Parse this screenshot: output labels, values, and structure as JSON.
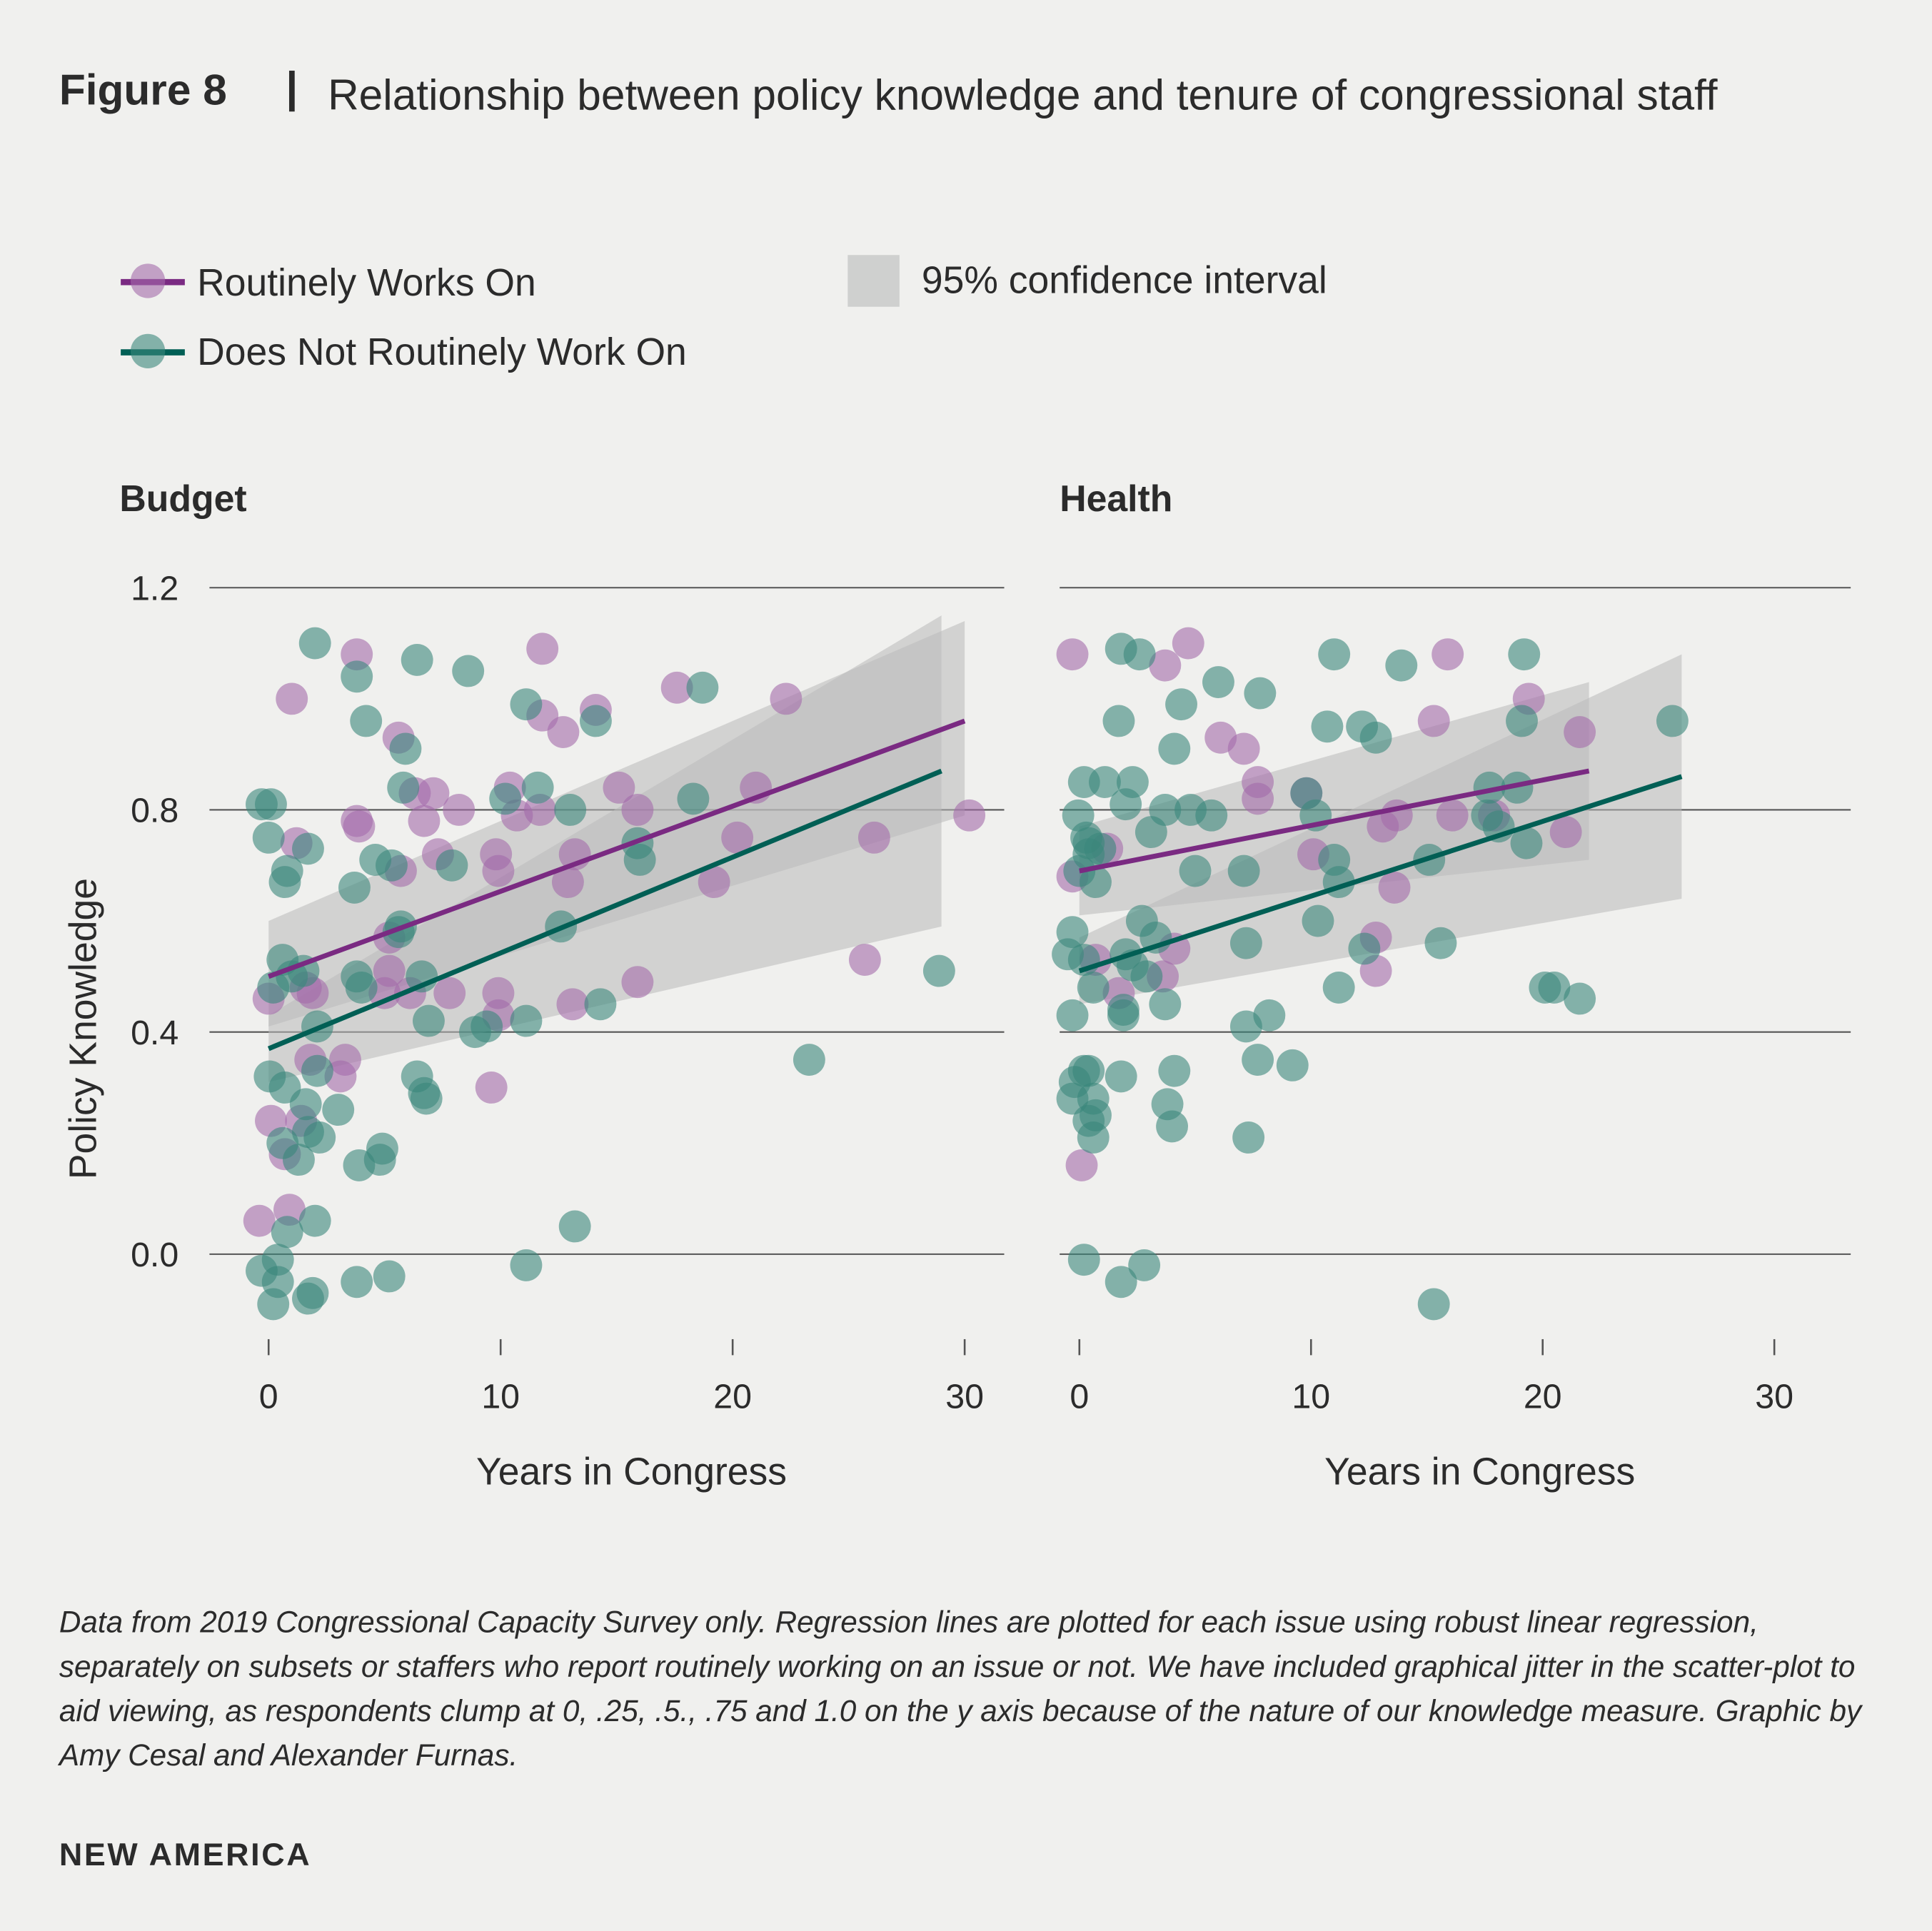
{
  "header": {
    "figure_label": "Figure 8",
    "separator": "|",
    "title": "Relationship between policy knowledge and tenure of congressional staff"
  },
  "legend": {
    "routine": "Routinely Works On",
    "not_routine": "Does Not Routinely Work On",
    "ci": "95% confidence interval"
  },
  "colors": {
    "background": "#f0f0ee",
    "routine_line": "#7a2a82",
    "routine_point": "#a46aaa",
    "not_line": "#015f55",
    "not_point": "#3a877c",
    "ci": "#b9baba"
  },
  "caption": "Data from 2019 Congressional Capacity Survey only. Regression lines are plotted for each issue using robust linear regression, separately on subsets or staffers who report routinely working on an issue or not. We have included graphical jitter in the scatter-plot to aid viewing, as respondents clump at 0, .25, .5., .75 and 1.0 on the y axis because of the nature of our knowledge measure. Graphic by Amy Cesal and Alexander Furnas.",
  "brand": "NEW AMERICA",
  "chart_data": [
    {
      "type": "scatter",
      "title": "Budget",
      "xlabel": "Years in Congress",
      "ylabel": "Policy Knowledge",
      "xlim": [
        -2.5,
        32
      ],
      "ylim": [
        -0.15,
        1.2
      ],
      "xticks": [
        "0",
        "10",
        "20",
        "30"
      ],
      "yticks": [
        "1.2",
        "0.8",
        "0.4",
        "0.0"
      ],
      "grid": "horizontal",
      "series": [
        {
          "name": "Routinely Works On",
          "points": [
            [
              -0.4,
              0.06
            ],
            [
              1.0,
              1.0
            ],
            [
              3.8,
              1.08
            ],
            [
              11.8,
              1.09
            ],
            [
              17.6,
              1.02
            ],
            [
              22.3,
              1.0
            ],
            [
              14.1,
              0.98
            ],
            [
              11.8,
              0.97
            ],
            [
              12.7,
              0.94
            ],
            [
              5.6,
              0.93
            ],
            [
              15.1,
              0.84
            ],
            [
              10.4,
              0.84
            ],
            [
              21.0,
              0.84
            ],
            [
              6.3,
              0.83
            ],
            [
              7.1,
              0.83
            ],
            [
              3.8,
              0.78
            ],
            [
              3.9,
              0.77
            ],
            [
              6.7,
              0.78
            ],
            [
              8.2,
              0.8
            ],
            [
              11.7,
              0.8
            ],
            [
              10.7,
              0.79
            ],
            [
              15.9,
              0.8
            ],
            [
              20.2,
              0.75
            ],
            [
              26.1,
              0.75
            ],
            [
              30.2,
              0.79
            ],
            [
              1.2,
              0.74
            ],
            [
              7.3,
              0.72
            ],
            [
              13.2,
              0.72
            ],
            [
              9.8,
              0.72
            ],
            [
              9.9,
              0.69
            ],
            [
              5.7,
              0.69
            ],
            [
              12.9,
              0.67
            ],
            [
              19.2,
              0.67
            ],
            [
              5.2,
              0.57
            ],
            [
              5.2,
              0.51
            ],
            [
              7.8,
              0.47
            ],
            [
              5.0,
              0.47
            ],
            [
              6.1,
              0.47
            ],
            [
              9.9,
              0.47
            ],
            [
              1.9,
              0.47
            ],
            [
              0,
              0.46
            ],
            [
              9.9,
              0.43
            ],
            [
              13.1,
              0.45
            ],
            [
              15.9,
              0.49
            ],
            [
              25.7,
              0.53
            ],
            [
              9.6,
              0.3
            ],
            [
              3.3,
              0.35
            ],
            [
              3.1,
              0.32
            ],
            [
              1.8,
              0.35
            ],
            [
              0.1,
              0.24
            ],
            [
              0.7,
              0.18
            ],
            [
              0.9,
              0.08
            ],
            [
              1.4,
              0.24
            ],
            [
              1.6,
              0.48
            ]
          ],
          "fit": {
            "x": [
              0,
              30
            ],
            "y": [
              0.5,
              0.96
            ]
          },
          "ci": {
            "x": [
              0,
              30
            ],
            "lower": [
              0.41,
              0.79
            ],
            "upper": [
              0.6,
              1.14
            ]
          }
        },
        {
          "name": "Does Not Routinely Work On",
          "points": [
            [
              2.0,
              1.1
            ],
            [
              6.4,
              1.07
            ],
            [
              3.8,
              1.04
            ],
            [
              8.6,
              1.05
            ],
            [
              11.1,
              0.99
            ],
            [
              18.7,
              1.02
            ],
            [
              4.2,
              0.96
            ],
            [
              14.1,
              0.96
            ],
            [
              5.9,
              0.91
            ],
            [
              11.6,
              0.84
            ],
            [
              5.8,
              0.84
            ],
            [
              18.3,
              0.82
            ],
            [
              -0.3,
              0.81
            ],
            [
              0.1,
              0.81
            ],
            [
              10.2,
              0.82
            ],
            [
              13.0,
              0.8
            ],
            [
              0,
              0.75
            ],
            [
              1.7,
              0.73
            ],
            [
              15.9,
              0.74
            ],
            [
              16.0,
              0.71
            ],
            [
              4.6,
              0.71
            ],
            [
              5.3,
              0.7
            ],
            [
              7.9,
              0.7
            ],
            [
              0.8,
              0.69
            ],
            [
              0.7,
              0.67
            ],
            [
              3.7,
              0.66
            ],
            [
              5.7,
              0.59
            ],
            [
              5.6,
              0.58
            ],
            [
              12.6,
              0.59
            ],
            [
              0.6,
              0.53
            ],
            [
              1.5,
              0.51
            ],
            [
              1.0,
              0.5
            ],
            [
              3.8,
              0.5
            ],
            [
              4.0,
              0.48
            ],
            [
              6.6,
              0.5
            ],
            [
              0.2,
              0.48
            ],
            [
              28.9,
              0.51
            ],
            [
              14.3,
              0.45
            ],
            [
              6.9,
              0.42
            ],
            [
              11.1,
              0.42
            ],
            [
              8.9,
              0.4
            ],
            [
              9.4,
              0.41
            ],
            [
              2.1,
              0.41
            ],
            [
              0.05,
              0.32
            ],
            [
              0.7,
              0.3
            ],
            [
              2.1,
              0.33
            ],
            [
              3.0,
              0.26
            ],
            [
              1.6,
              0.27
            ],
            [
              6.4,
              0.32
            ],
            [
              6.7,
              0.29
            ],
            [
              6.8,
              0.28
            ],
            [
              1.7,
              0.22
            ],
            [
              2.2,
              0.21
            ],
            [
              0.6,
              0.2
            ],
            [
              1.3,
              0.17
            ],
            [
              3.9,
              0.16
            ],
            [
              4.8,
              0.17
            ],
            [
              4.9,
              0.19
            ],
            [
              23.3,
              0.35
            ],
            [
              2.0,
              0.06
            ],
            [
              0.8,
              0.04
            ],
            [
              13.2,
              0.05
            ],
            [
              -0.3,
              -0.03
            ],
            [
              0.4,
              -0.01
            ],
            [
              0.4,
              -0.05
            ],
            [
              0.2,
              -0.09
            ],
            [
              1.7,
              -0.08
            ],
            [
              1.9,
              -0.07
            ],
            [
              3.8,
              -0.05
            ],
            [
              5.2,
              -0.04
            ],
            [
              11.1,
              -0.02
            ]
          ],
          "fit": {
            "x": [
              0,
              29
            ],
            "y": [
              0.37,
              0.87
            ]
          },
          "ci": {
            "x": [
              0,
              29
            ],
            "lower": [
              0.31,
              0.59
            ],
            "upper": [
              0.43,
              1.15
            ]
          }
        }
      ]
    },
    {
      "type": "scatter",
      "title": "Health",
      "xlabel": "Years in Congress",
      "ylabel": "",
      "xlim": [
        -0.8,
        33.4
      ],
      "ylim": [
        -0.15,
        1.2
      ],
      "xticks": [
        "0",
        "10",
        "20",
        "30"
      ],
      "yticks": [
        "1.2",
        "0.8",
        "0.4",
        "0.0"
      ],
      "grid": "horizontal",
      "series": [
        {
          "name": "Routinely Works On",
          "points": [
            [
              -0.3,
              1.08
            ],
            [
              4.7,
              1.1
            ],
            [
              3.7,
              1.06
            ],
            [
              15.9,
              1.08
            ],
            [
              6.1,
              0.93
            ],
            [
              7.1,
              0.91
            ],
            [
              15.3,
              0.96
            ],
            [
              19.4,
              1.0
            ],
            [
              21.6,
              0.94
            ],
            [
              7.7,
              0.85
            ],
            [
              7.7,
              0.82
            ],
            [
              9.8,
              0.83
            ],
            [
              13.7,
              0.79
            ],
            [
              16.1,
              0.79
            ],
            [
              13.1,
              0.77
            ],
            [
              21.0,
              0.76
            ],
            [
              17.9,
              0.79
            ],
            [
              1.2,
              0.73
            ],
            [
              -0.3,
              0.68
            ],
            [
              10.1,
              0.72
            ],
            [
              13.6,
              0.66
            ],
            [
              0.7,
              0.53
            ],
            [
              4.1,
              0.55
            ],
            [
              12.8,
              0.57
            ],
            [
              12.8,
              0.51
            ],
            [
              3.6,
              0.5
            ],
            [
              1.7,
              0.47
            ],
            [
              0.1,
              0.16
            ]
          ],
          "fit": {
            "x": [
              0,
              22
            ],
            "y": [
              0.69,
              0.87
            ]
          },
          "ci": {
            "x": [
              0,
              22
            ],
            "lower": [
              0.61,
              0.71
            ],
            "upper": [
              0.77,
              1.03
            ]
          }
        },
        {
          "name": "Does Not Routinely Work On",
          "points": [
            [
              1.8,
              1.09
            ],
            [
              2.6,
              1.08
            ],
            [
              11.0,
              1.08
            ],
            [
              13.9,
              1.06
            ],
            [
              19.2,
              1.08
            ],
            [
              6.0,
              1.03
            ],
            [
              7.8,
              1.01
            ],
            [
              4.4,
              0.99
            ],
            [
              1.7,
              0.96
            ],
            [
              10.7,
              0.95
            ],
            [
              12.2,
              0.95
            ],
            [
              12.8,
              0.93
            ],
            [
              19.1,
              0.96
            ],
            [
              25.6,
              0.96
            ],
            [
              4.1,
              0.91
            ],
            [
              0.2,
              0.85
            ],
            [
              1.1,
              0.85
            ],
            [
              2.3,
              0.85
            ],
            [
              17.7,
              0.84
            ],
            [
              18.9,
              0.84
            ],
            [
              3.7,
              0.8
            ],
            [
              2.0,
              0.81
            ],
            [
              4.8,
              0.8
            ],
            [
              5.7,
              0.79
            ],
            [
              -0.05,
              0.79
            ],
            [
              9.8,
              0.83
            ],
            [
              10.2,
              0.79
            ],
            [
              17.6,
              0.79
            ],
            [
              18.1,
              0.77
            ],
            [
              3.1,
              0.76
            ],
            [
              0.3,
              0.75
            ],
            [
              0.4,
              0.74
            ],
            [
              0.4,
              0.72
            ],
            [
              0.9,
              0.73
            ],
            [
              11.0,
              0.71
            ],
            [
              15.1,
              0.71
            ],
            [
              19.3,
              0.74
            ],
            [
              5.0,
              0.69
            ],
            [
              7.1,
              0.69
            ],
            [
              11.2,
              0.67
            ],
            [
              0,
              0.69
            ],
            [
              0.7,
              0.67
            ],
            [
              10.3,
              0.6
            ],
            [
              2.7,
              0.6
            ],
            [
              -0.3,
              0.58
            ],
            [
              3.3,
              0.57
            ],
            [
              7.2,
              0.56
            ],
            [
              15.6,
              0.56
            ],
            [
              12.3,
              0.55
            ],
            [
              -0.5,
              0.54
            ],
            [
              0.2,
              0.53
            ],
            [
              2.0,
              0.54
            ],
            [
              2.3,
              0.52
            ],
            [
              2.9,
              0.5
            ],
            [
              0.6,
              0.48
            ],
            [
              11.2,
              0.48
            ],
            [
              20.1,
              0.48
            ],
            [
              20.5,
              0.48
            ],
            [
              21.6,
              0.46
            ],
            [
              3.7,
              0.45
            ],
            [
              -0.3,
              0.43
            ],
            [
              1.9,
              0.44
            ],
            [
              1.9,
              0.43
            ],
            [
              8.2,
              0.43
            ],
            [
              7.2,
              0.41
            ],
            [
              7.7,
              0.35
            ],
            [
              9.2,
              0.34
            ],
            [
              4.1,
              0.33
            ],
            [
              0.2,
              0.33
            ],
            [
              0.4,
              0.33
            ],
            [
              1.8,
              0.32
            ],
            [
              -0.2,
              0.31
            ],
            [
              -0.3,
              0.28
            ],
            [
              0.6,
              0.28
            ],
            [
              3.8,
              0.27
            ],
            [
              0.7,
              0.25
            ],
            [
              0.4,
              0.24
            ],
            [
              4.0,
              0.23
            ],
            [
              0.6,
              0.21
            ],
            [
              7.3,
              0.21
            ],
            [
              0.2,
              -0.01
            ],
            [
              2.8,
              -0.02
            ],
            [
              1.8,
              -0.05
            ],
            [
              15.3,
              -0.09
            ]
          ],
          "fit": {
            "x": [
              0,
              26
            ],
            "y": [
              0.51,
              0.86
            ]
          },
          "ci": {
            "x": [
              0,
              26
            ],
            "lower": [
              0.45,
              0.64
            ],
            "upper": [
              0.57,
              1.08
            ]
          }
        }
      ]
    }
  ]
}
